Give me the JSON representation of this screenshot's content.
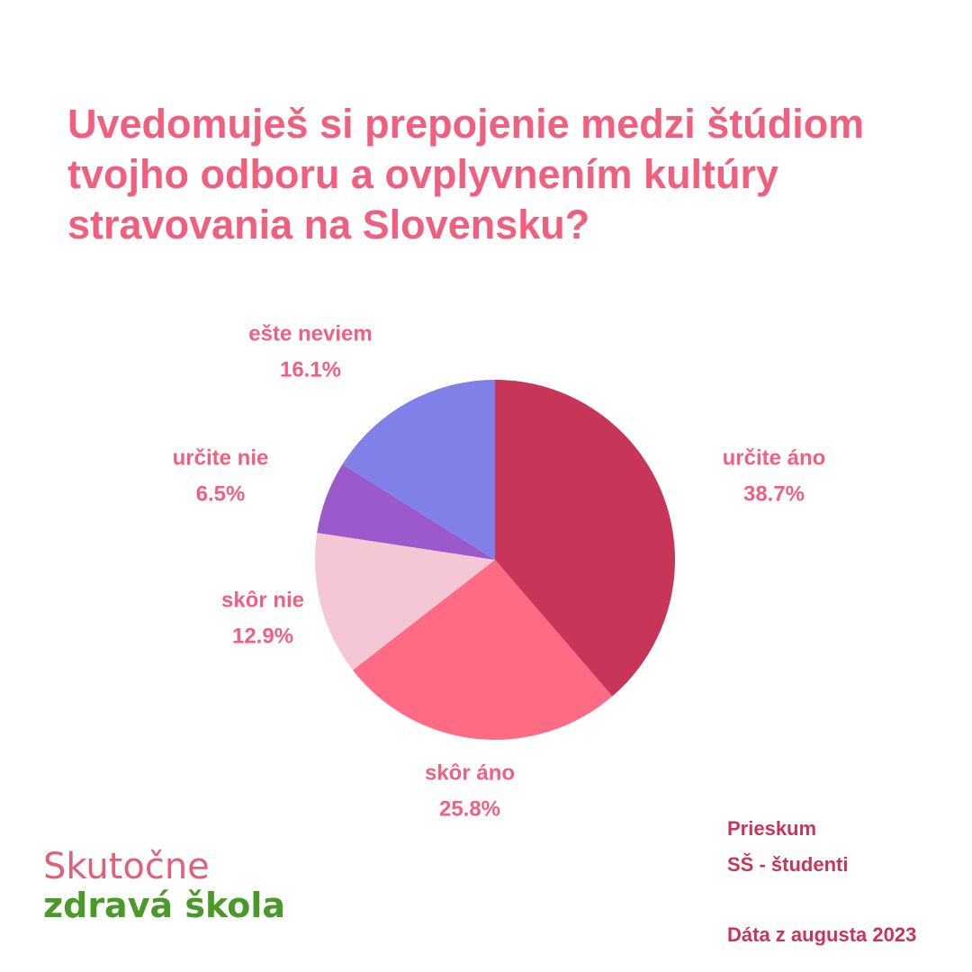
{
  "chart_data": {
    "type": "pie",
    "title": "Uvedomuješ si prepojenie medzi štúdiom tvojho odboru a ovplyvnením kultúry stravovania na Slovensku?",
    "categories": [
      "určite áno",
      "skôr áno",
      "skôr nie",
      "určite nie",
      "ešte neviem"
    ],
    "values": [
      38.7,
      25.8,
      12.9,
      6.5,
      16.1
    ],
    "value_labels": [
      "38.7%",
      "25.8%",
      "12.9%",
      "6.5%",
      "16.1%"
    ],
    "colors": [
      "#c73659",
      "#ff6b85",
      "#f5c6d4",
      "#9b59cc",
      "#8080e8"
    ]
  },
  "logo": {
    "line1": "Skutočne",
    "line2": "zdravá škola"
  },
  "footer": {
    "survey": "Prieskum",
    "group": "SŠ - študenti",
    "date": "Dáta z augusta 2023"
  }
}
